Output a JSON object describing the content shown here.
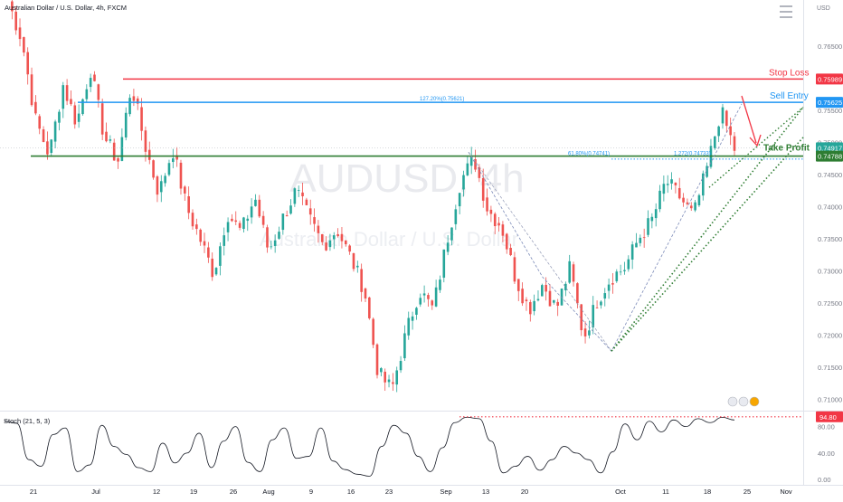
{
  "header": {
    "symbol_title": "Australian Dollar / U.S. Dollar, 4h, FXCM",
    "currency": "USD",
    "watermark_main": "AUDUSD, 4h",
    "watermark_sub": "Australian Dollar / U.S. Dollar"
  },
  "colors": {
    "up": "#26a69a",
    "down": "#ef5350",
    "stop_loss": "#f23645",
    "sell_entry": "#2196f3",
    "take_profit": "#2e7d32",
    "trendline": "#2e7d32",
    "stoch_line": "#131722",
    "stoch_level": "#f23645"
  },
  "chart_data": [
    {
      "type": "candlestick",
      "title": "Australian Dollar / U.S. Dollar, 4h, FXCM",
      "y_axis": {
        "ticks": [
          0.765,
          0.76,
          0.755,
          0.75,
          0.745,
          0.74,
          0.735,
          0.73,
          0.725,
          0.72,
          0.715,
          0.71
        ],
        "tick_labels": [
          "0.76500",
          "0.76000",
          "0.75500",
          "0.75000",
          "0.74500",
          "0.74000",
          "0.73500",
          "0.73000",
          "0.72500",
          "0.72000",
          "0.71500",
          "0.71000"
        ],
        "range": [
          0.7085,
          0.7722
        ]
      },
      "x_axis": {
        "labels": [
          "21",
          "Jul",
          "12",
          "19",
          "26",
          "Aug",
          "9",
          "16",
          "23",
          "Sep",
          "13",
          "20",
          "Oct",
          "11",
          "18",
          "25",
          "Nov"
        ]
      },
      "series": [
        {
          "name": "AUDUSD",
          "path": [
            0.772,
            0.766,
            0.7535,
            0.748,
            0.759,
            0.753,
            0.7615,
            0.751,
            0.747,
            0.759,
            0.7495,
            0.742,
            0.749,
            0.74,
            0.735,
            0.7295,
            0.739,
            0.736,
            0.7415,
            0.733,
            0.738,
            0.7425,
            0.738,
            0.734,
            0.7365,
            0.732,
            0.727,
            0.714,
            0.7115,
            0.72,
            0.727,
            0.724,
            0.7345,
            0.744,
            0.7475,
            0.7395,
            0.737,
            0.729,
            0.724,
            0.728,
            0.724,
            0.7305,
            0.7195,
            0.7255,
            0.729,
            0.7305,
            0.735,
            0.738,
            0.744,
            0.7415,
            0.7385,
            0.746,
            0.755,
            0.749
          ]
        }
      ],
      "levels": [
        {
          "name": "Stop Loss",
          "value": 0.75989,
          "price_label": "0.75989"
        },
        {
          "name": "Sell Entry",
          "value": 0.75625,
          "price_label": "0.75625"
        },
        {
          "name": "Take Profit",
          "value": 0.74788,
          "price_label": "0.74788"
        }
      ],
      "last_price": {
        "value": 0.74917,
        "label": "0.74917"
      },
      "fib_labels": [
        {
          "text": "127.20%(0.75621)"
        },
        {
          "text": "61.80%(0.74741)"
        },
        {
          "text": "1.272(0.74733)"
        }
      ]
    },
    {
      "type": "line",
      "title": "Stoch (21, 5, 3)",
      "y_axis": {
        "ticks": [
          80,
          40,
          0
        ],
        "tick_labels": [
          "80.00",
          "40.00",
          "0.00"
        ],
        "range": [
          -8,
          100
        ]
      },
      "series": [
        {
          "name": "Stoch",
          "values": [
            88,
            85,
            30,
            20,
            68,
            78,
            12,
            22,
            82,
            50,
            38,
            18,
            12,
            55,
            25,
            40,
            70,
            18,
            58,
            80,
            26,
            12,
            60,
            78,
            32,
            35,
            78,
            28,
            15,
            8,
            5,
            50,
            82,
            70,
            35,
            12,
            48,
            86,
            94,
            92,
            58,
            10,
            20,
            35,
            14,
            30,
            50,
            40,
            30,
            10,
            42,
            84,
            60,
            88,
            72,
            90,
            80,
            92,
            86,
            94,
            90
          ]
        }
      ],
      "overbought_level": {
        "value": 94.8,
        "label": "94.80"
      }
    }
  ]
}
